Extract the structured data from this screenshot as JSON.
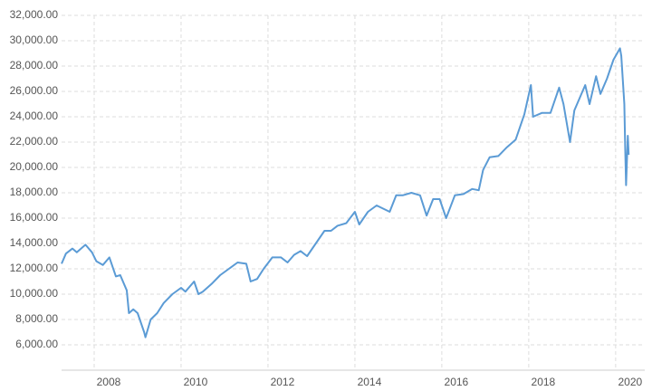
{
  "chart_data": {
    "type": "line",
    "x": [
      2007.25,
      2007.35,
      2007.5,
      2007.6,
      2007.8,
      2007.95,
      2008.05,
      2008.2,
      2008.35,
      2008.5,
      2008.6,
      2008.75,
      2008.8,
      2008.9,
      2009.0,
      2009.15,
      2009.18,
      2009.3,
      2009.45,
      2009.6,
      2009.8,
      2010.0,
      2010.1,
      2010.3,
      2010.4,
      2010.5,
      2010.7,
      2010.9,
      2011.1,
      2011.3,
      2011.5,
      2011.6,
      2011.75,
      2011.9,
      2012.1,
      2012.3,
      2012.45,
      2012.6,
      2012.75,
      2012.9,
      2013.1,
      2013.3,
      2013.45,
      2013.6,
      2013.8,
      2014.0,
      2014.1,
      2014.3,
      2014.5,
      2014.8,
      2014.95,
      2015.1,
      2015.3,
      2015.5,
      2015.65,
      2015.8,
      2015.95,
      2016.1,
      2016.3,
      2016.5,
      2016.7,
      2016.85,
      2016.95,
      2017.1,
      2017.3,
      2017.5,
      2017.7,
      2017.9,
      2018.05,
      2018.1,
      2018.3,
      2018.5,
      2018.7,
      2018.8,
      2018.95,
      2019.05,
      2019.3,
      2019.4,
      2019.55,
      2019.65,
      2019.8,
      2019.95,
      2020.1,
      2020.13,
      2020.2,
      2020.22,
      2020.24,
      2020.28,
      2020.3
    ],
    "series": [
      {
        "color": "#5b9bd5",
        "values": [
          12400,
          13200,
          13600,
          13300,
          13900,
          13300,
          12600,
          12300,
          12900,
          11400,
          11500,
          10300,
          8500,
          8800,
          8500,
          7000,
          6600,
          8000,
          8500,
          9300,
          10000,
          10500,
          10200,
          11000,
          10000,
          10200,
          10800,
          11500,
          12000,
          12500,
          12400,
          11000,
          11200,
          12000,
          12900,
          12900,
          12500,
          13100,
          13400,
          13000,
          14000,
          15000,
          15000,
          15400,
          15600,
          16500,
          15500,
          16500,
          17000,
          16500,
          17800,
          17800,
          18000,
          17800,
          16200,
          17500,
          17500,
          16000,
          17800,
          17900,
          18300,
          18200,
          19800,
          20800,
          20900,
          21600,
          22200,
          24200,
          26500,
          24000,
          24300,
          24300,
          26300,
          25000,
          22000,
          24500,
          26500,
          25000,
          27200,
          25800,
          27000,
          28500,
          29400,
          28800,
          25000,
          21500,
          18600,
          22500,
          21000
        ]
      }
    ],
    "xlim": [
      2007.25,
      2020.67
    ],
    "xticks": [
      2008,
      2010,
      2012,
      2014,
      2016,
      2018,
      2020
    ],
    "ylim": [
      4000,
      32000
    ],
    "yticks": [
      {
        "value": 6000,
        "label": "6,000.00"
      },
      {
        "value": 8000,
        "label": "8,000.00"
      },
      {
        "value": 10000,
        "label": "10,000.00"
      },
      {
        "value": 12000,
        "label": "12,000.00"
      },
      {
        "value": 14000,
        "label": "14,000.00"
      },
      {
        "value": 16000,
        "label": "16,000.00"
      },
      {
        "value": 18000,
        "label": "18,000.00"
      },
      {
        "value": 20000,
        "label": "20,000.00"
      },
      {
        "value": 22000,
        "label": "22,000.00"
      },
      {
        "value": 24000,
        "label": "24,000.00"
      },
      {
        "value": 26000,
        "label": "26,000.00"
      },
      {
        "value": 28000,
        "label": "28,000.00"
      },
      {
        "value": 30000,
        "label": "30,000.00"
      },
      {
        "value": 32000,
        "label": "32,000.00"
      }
    ],
    "grid": true
  }
}
